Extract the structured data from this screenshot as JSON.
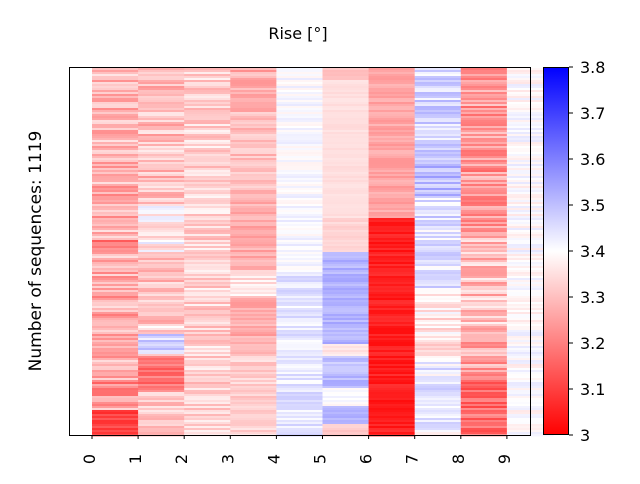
{
  "chart_data": {
    "type": "heatmap",
    "title": "Rise [°]",
    "ylabel": "Number of sequences: 1119",
    "xlabel": "",
    "categories": [
      "0",
      "1",
      "2",
      "3",
      "4",
      "5",
      "6",
      "7",
      "8",
      "9"
    ],
    "row_count": 1119,
    "colorbar": {
      "min": 3.0,
      "max": 3.8,
      "ticks": [
        "3",
        "3.1",
        "3.2",
        "3.3",
        "3.4",
        "3.5",
        "3.6",
        "3.7",
        "3.8"
      ],
      "colormap": "bwr_r",
      "low_color": "#ff0000",
      "mid_color": "#ffffff",
      "high_color": "#0000ff"
    },
    "column_profiles": [
      {
        "column": "0",
        "bands": [
          {
            "from": 0.0,
            "to": 0.47,
            "mean": 3.28,
            "jitter": 0.08
          },
          {
            "from": 0.47,
            "to": 0.5,
            "mean": 3.2,
            "jitter": 0.06
          },
          {
            "from": 0.5,
            "to": 0.85,
            "mean": 3.27,
            "jitter": 0.08
          },
          {
            "from": 0.85,
            "to": 0.93,
            "mean": 3.25,
            "jitter": 0.1
          },
          {
            "from": 0.93,
            "to": 1.0,
            "mean": 3.1,
            "jitter": 0.04
          }
        ]
      },
      {
        "column": "1",
        "bands": [
          {
            "from": 0.0,
            "to": 0.37,
            "mean": 3.3,
            "jitter": 0.07
          },
          {
            "from": 0.37,
            "to": 0.5,
            "mean": 3.38,
            "jitter": 0.08
          },
          {
            "from": 0.5,
            "to": 0.7,
            "mean": 3.3,
            "jitter": 0.06
          },
          {
            "from": 0.7,
            "to": 0.78,
            "mean": 3.4,
            "jitter": 0.12
          },
          {
            "from": 0.78,
            "to": 0.88,
            "mean": 3.18,
            "jitter": 0.05
          },
          {
            "from": 0.88,
            "to": 1.0,
            "mean": 3.32,
            "jitter": 0.06
          }
        ]
      },
      {
        "column": "2",
        "bands": [
          {
            "from": 0.0,
            "to": 1.0,
            "mean": 3.33,
            "jitter": 0.06
          }
        ]
      },
      {
        "column": "3",
        "bands": [
          {
            "from": 0.0,
            "to": 0.12,
            "mean": 3.27,
            "jitter": 0.05
          },
          {
            "from": 0.12,
            "to": 0.33,
            "mean": 3.3,
            "jitter": 0.04
          },
          {
            "from": 0.33,
            "to": 0.55,
            "mean": 3.27,
            "jitter": 0.04
          },
          {
            "from": 0.55,
            "to": 0.62,
            "mean": 3.35,
            "jitter": 0.05
          },
          {
            "from": 0.62,
            "to": 0.78,
            "mean": 3.27,
            "jitter": 0.04
          },
          {
            "from": 0.78,
            "to": 1.0,
            "mean": 3.33,
            "jitter": 0.04
          }
        ]
      },
      {
        "column": "4",
        "bands": [
          {
            "from": 0.0,
            "to": 0.55,
            "mean": 3.41,
            "jitter": 0.03
          },
          {
            "from": 0.55,
            "to": 1.0,
            "mean": 3.44,
            "jitter": 0.04
          }
        ]
      },
      {
        "column": "5",
        "bands": [
          {
            "from": 0.0,
            "to": 0.03,
            "mean": 3.3,
            "jitter": 0.02
          },
          {
            "from": 0.03,
            "to": 0.41,
            "mean": 3.35,
            "jitter": 0.01
          },
          {
            "from": 0.41,
            "to": 0.5,
            "mean": 3.33,
            "jitter": 0.02
          },
          {
            "from": 0.5,
            "to": 0.75,
            "mean": 3.52,
            "jitter": 0.03
          },
          {
            "from": 0.75,
            "to": 0.78,
            "mean": 3.36,
            "jitter": 0.02
          },
          {
            "from": 0.78,
            "to": 0.87,
            "mean": 3.5,
            "jitter": 0.04
          },
          {
            "from": 0.87,
            "to": 0.92,
            "mean": 3.4,
            "jitter": 0.03
          },
          {
            "from": 0.92,
            "to": 0.97,
            "mean": 3.52,
            "jitter": 0.02
          },
          {
            "from": 0.97,
            "to": 1.0,
            "mean": 3.32,
            "jitter": 0.02
          }
        ]
      },
      {
        "column": "6",
        "bands": [
          {
            "from": 0.0,
            "to": 0.04,
            "mean": 3.25,
            "jitter": 0.03
          },
          {
            "from": 0.04,
            "to": 0.41,
            "mean": 3.26,
            "jitter": 0.03
          },
          {
            "from": 0.41,
            "to": 1.0,
            "mean": 3.05,
            "jitter": 0.03
          }
        ]
      },
      {
        "column": "7",
        "bands": [
          {
            "from": 0.0,
            "to": 0.2,
            "mean": 3.46,
            "jitter": 0.06
          },
          {
            "from": 0.2,
            "to": 0.35,
            "mean": 3.5,
            "jitter": 0.06
          },
          {
            "from": 0.35,
            "to": 0.6,
            "mean": 3.45,
            "jitter": 0.06
          },
          {
            "from": 0.6,
            "to": 0.8,
            "mean": 3.36,
            "jitter": 0.06
          },
          {
            "from": 0.8,
            "to": 1.0,
            "mean": 3.43,
            "jitter": 0.06
          }
        ]
      },
      {
        "column": "8",
        "bands": [
          {
            "from": 0.0,
            "to": 0.45,
            "mean": 3.24,
            "jitter": 0.08
          },
          {
            "from": 0.45,
            "to": 0.7,
            "mean": 3.3,
            "jitter": 0.08
          },
          {
            "from": 0.7,
            "to": 0.83,
            "mean": 3.26,
            "jitter": 0.08
          },
          {
            "from": 0.83,
            "to": 1.0,
            "mean": 3.17,
            "jitter": 0.07
          }
        ]
      },
      {
        "column": "9",
        "bands": [
          {
            "from": 0.0,
            "to": 1.0,
            "mean": 3.4,
            "jitter": 0.04
          }
        ]
      }
    ],
    "grid": false,
    "legend": "colorbar-right"
  }
}
